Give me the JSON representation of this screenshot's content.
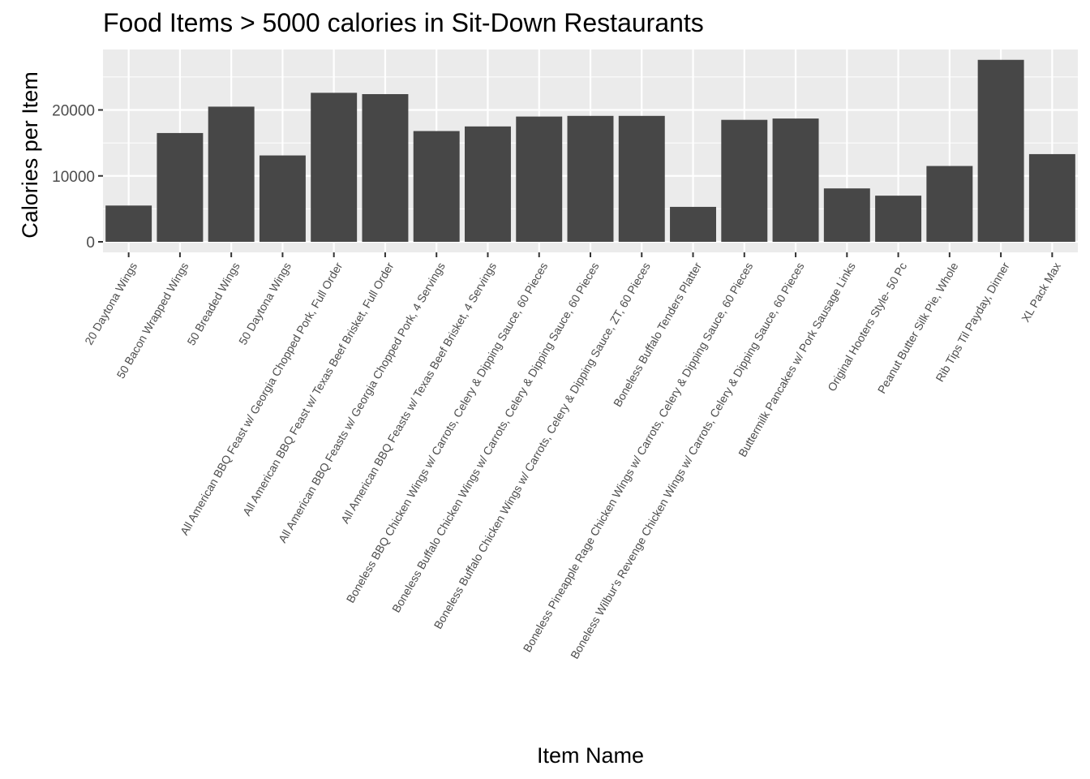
{
  "chart_data": {
    "type": "bar",
    "title": "Food Items > 5000 calories in Sit-Down Restaurants",
    "xlabel": "Item Name",
    "ylabel": "Calories per Item",
    "ylim": [
      -2000,
      29000
    ],
    "yticks": [
      0,
      10000,
      20000
    ],
    "ytick_labels": [
      "0",
      "10000",
      "20000"
    ],
    "grid": true,
    "categories": [
      "20 Daytona Wings",
      "50 Bacon Wrapped Wings",
      "50 Breaded Wings",
      "50 Daytona Wings",
      "All American BBQ Feast w/ Georgia Chopped Pork, Full Order",
      "All American BBQ Feast w/ Texas Beef Brisket, Full Order",
      "All American BBQ Feasts w/ Georgia Chopped Pork, 4 Servings",
      "All American BBQ Feasts w/ Texas Beef Brisket, 4 Servings",
      "Boneless BBQ Chicken Wings w/ Carrots, Celery & Dipping Sauce, 60 Pieces",
      "Boneless Buffalo Chicken Wings w/ Carrots, Celery & Dipping Sauce, 60 Pieces",
      "Boneless Buffalo Chicken Wings w/ Carrots, Celery & Dipping Sauce, ZT, 60 Pieces",
      "Boneless Buffalo Tenders Platter",
      "Boneless Pineapple Rage Chicken Wings w/ Carrots, Celery & Dipping Sauce, 60 Pieces",
      "Boneless Wilbur's Revenge Chicken Wings w/ Carrots, Celery & Dipping Sauce, 60 Pieces",
      "Buttermilk Pancakes w/ Pork Sausage Links",
      "Original Hooters Style- 50 Pc",
      "Peanut Butter Silk Pie, Whole",
      "Rib Tips Til Payday, Dinner",
      "XL Pack Max"
    ],
    "values": [
      5500,
      16500,
      20500,
      13100,
      22600,
      22400,
      16800,
      17500,
      19000,
      19100,
      19100,
      5300,
      18500,
      18700,
      8100,
      7000,
      11500,
      27600,
      13300
    ],
    "colors": {
      "bar": "#474747",
      "panel": "#ebebeb",
      "grid": "#ffffff",
      "tick": "#333333"
    }
  }
}
